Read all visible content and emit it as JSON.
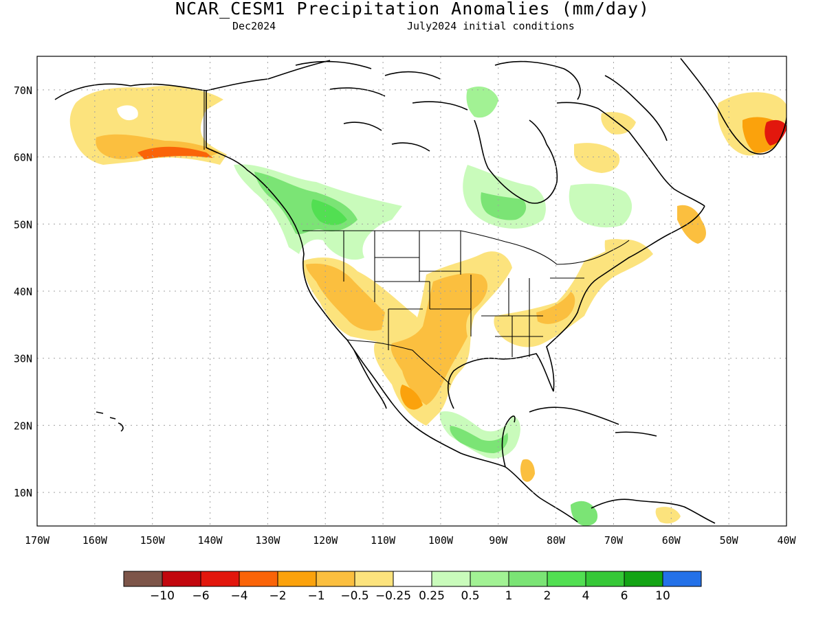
{
  "title": "NCAR_CESM1 Precipitation Anomalies (mm/day)",
  "subtitle_left": "Dec2024",
  "subtitle_right": "July2024 initial conditions",
  "map": {
    "lon_range": [
      -170,
      -40
    ],
    "lat_range": [
      5,
      75
    ],
    "grid": true,
    "lon_ticks": [
      "170W",
      "160W",
      "150W",
      "140W",
      "130W",
      "120W",
      "110W",
      "100W",
      "90W",
      "80W",
      "70W",
      "60W",
      "50W",
      "40W"
    ],
    "lat_ticks": [
      "10N",
      "20N",
      "30N",
      "40N",
      "50N",
      "60N",
      "70N"
    ]
  },
  "colorbar": {
    "labels": [
      "-10",
      "-6",
      "-4",
      "-2",
      "-1",
      "-0.5",
      "-0.25",
      "0.25",
      "0.5",
      "1",
      "2",
      "4",
      "6",
      "10"
    ],
    "colors": [
      "#7d5549",
      "#c2070e",
      "#e2170d",
      "#fa6408",
      "#fba20c",
      "#fbbf3f",
      "#fce37d",
      "#ffffff",
      "#c9fbbb",
      "#a2f294",
      "#7be475",
      "#52df52",
      "#36c837",
      "#13a414",
      "#2471e8"
    ]
  },
  "anomaly_regions": [
    {
      "name": "alaska-dry",
      "level": -0.5,
      "lon": -151,
      "lat": 63
    },
    {
      "name": "south-alaska-dry",
      "level": -2,
      "lon": -146,
      "lat": 60.5
    },
    {
      "name": "pacific-northwest-wet",
      "level": 2,
      "lon": -122,
      "lat": 51
    },
    {
      "name": "southwest-us-dry",
      "level": -1,
      "lon": -115,
      "lat": 37
    },
    {
      "name": "central-plains-dry",
      "level": -1,
      "lon": -97,
      "lat": 38
    },
    {
      "name": "mexico-dry",
      "level": -1,
      "lon": -102,
      "lat": 25
    },
    {
      "name": "southeast-us-dry",
      "level": -0.5,
      "lon": -84,
      "lat": 34
    },
    {
      "name": "hudson-bay-wet",
      "level": 1,
      "lon": -88,
      "lat": 52
    },
    {
      "name": "quebec-wet",
      "level": 0.5,
      "lon": -72,
      "lat": 52
    },
    {
      "name": "central-america-wet",
      "level": 1,
      "lon": -93,
      "lat": 18
    },
    {
      "name": "greenland-dry",
      "level": -2,
      "lon": -46,
      "lat": 63
    },
    {
      "name": "baffin-dry",
      "level": -0.5,
      "lon": -69,
      "lat": 64
    },
    {
      "name": "colombia-wet",
      "level": 2,
      "lon": -76,
      "lat": 7
    }
  ]
}
